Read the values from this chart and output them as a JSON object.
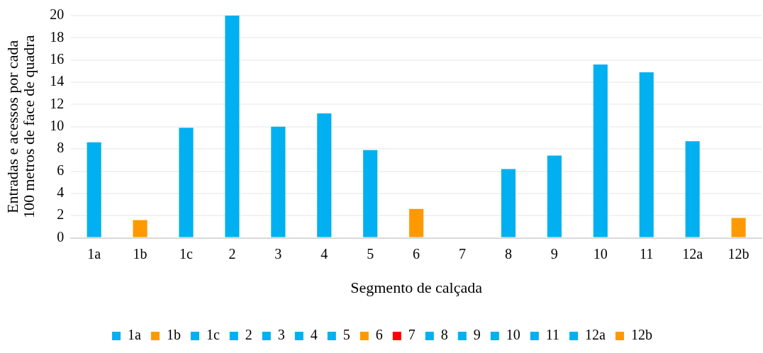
{
  "chart_data": {
    "type": "bar",
    "xlabel": "Segmento de calçada",
    "ylabel": "Entradas e acessos por cada 100 metros de face de quadra",
    "categories": [
      "1a",
      "1b",
      "1c",
      "2",
      "3",
      "4",
      "5",
      "6",
      "7",
      "8",
      "9",
      "10",
      "11",
      "12a",
      "12b"
    ],
    "series": [
      {
        "name": "1a",
        "color": "#00b0f0",
        "values": [
          8.6,
          null,
          null,
          null,
          null,
          null,
          null,
          null,
          null,
          null,
          null,
          null,
          null,
          null,
          null
        ]
      },
      {
        "name": "1b",
        "color": "#ff9900",
        "values": [
          null,
          1.6,
          null,
          null,
          null,
          null,
          null,
          null,
          null,
          null,
          null,
          null,
          null,
          null,
          null
        ]
      },
      {
        "name": "1c",
        "color": "#00b0f0",
        "values": [
          null,
          null,
          9.9,
          null,
          null,
          null,
          null,
          null,
          null,
          null,
          null,
          null,
          null,
          null,
          null
        ]
      },
      {
        "name": "2",
        "color": "#00b0f0",
        "values": [
          null,
          null,
          null,
          20.0,
          null,
          null,
          null,
          null,
          null,
          null,
          null,
          null,
          null,
          null,
          null
        ]
      },
      {
        "name": "3",
        "color": "#00b0f0",
        "values": [
          null,
          null,
          null,
          null,
          10.0,
          null,
          null,
          null,
          null,
          null,
          null,
          null,
          null,
          null,
          null
        ]
      },
      {
        "name": "4",
        "color": "#00b0f0",
        "values": [
          null,
          null,
          null,
          null,
          null,
          11.2,
          null,
          null,
          null,
          null,
          null,
          null,
          null,
          null,
          null
        ]
      },
      {
        "name": "5",
        "color": "#00b0f0",
        "values": [
          null,
          null,
          null,
          null,
          null,
          null,
          7.9,
          null,
          null,
          null,
          null,
          null,
          null,
          null,
          null
        ]
      },
      {
        "name": "6",
        "color": "#ff9900",
        "values": [
          null,
          null,
          null,
          null,
          null,
          null,
          null,
          2.6,
          null,
          null,
          null,
          null,
          null,
          null,
          null
        ]
      },
      {
        "name": "7",
        "color": "#ff0000",
        "values": [
          null,
          null,
          null,
          null,
          null,
          null,
          null,
          null,
          0,
          null,
          null,
          null,
          null,
          null,
          null
        ]
      },
      {
        "name": "8",
        "color": "#00b0f0",
        "values": [
          null,
          null,
          null,
          null,
          null,
          null,
          null,
          null,
          null,
          6.2,
          null,
          null,
          null,
          null,
          null
        ]
      },
      {
        "name": "9",
        "color": "#00b0f0",
        "values": [
          null,
          null,
          null,
          null,
          null,
          null,
          null,
          null,
          null,
          null,
          7.4,
          null,
          null,
          null,
          null
        ]
      },
      {
        "name": "10",
        "color": "#00b0f0",
        "values": [
          null,
          null,
          null,
          null,
          null,
          null,
          null,
          null,
          null,
          null,
          null,
          15.6,
          null,
          null,
          null
        ]
      },
      {
        "name": "11",
        "color": "#00b0f0",
        "values": [
          null,
          null,
          null,
          null,
          null,
          null,
          null,
          null,
          null,
          null,
          null,
          null,
          14.9,
          null,
          null
        ]
      },
      {
        "name": "12a",
        "color": "#00b0f0",
        "values": [
          null,
          null,
          null,
          null,
          null,
          null,
          null,
          null,
          null,
          null,
          null,
          null,
          null,
          8.7,
          null
        ]
      },
      {
        "name": "12b",
        "color": "#ff9900",
        "values": [
          null,
          null,
          null,
          null,
          null,
          null,
          null,
          null,
          null,
          null,
          null,
          null,
          null,
          null,
          1.8
        ]
      }
    ],
    "ylim": [
      0,
      20
    ],
    "yticks": [
      0,
      2,
      4,
      6,
      8,
      10,
      12,
      14,
      16,
      18,
      20
    ],
    "grid": "y",
    "legend": "bottom"
  }
}
